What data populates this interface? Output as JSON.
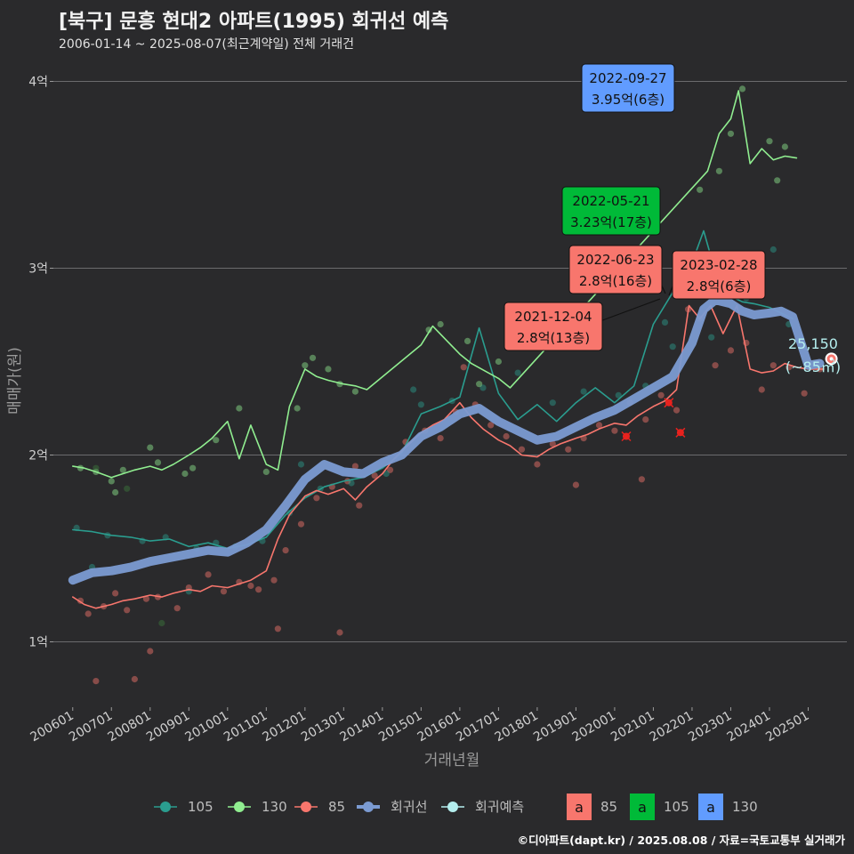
{
  "title": "[북구] 문흥 현대2 아파트(1995) 회귀선 예측",
  "subtitle": "2006-01-14 ~ 2025-08-07(최근계약일) 전체 거래건",
  "caption": "©디아파트(dapt.kr) / 2025.08.08 / 자료=국토교통부 실거래가",
  "colors": {
    "background": "#2a2a2c",
    "s105": "#2a9d8f",
    "s130": "#90ee90",
    "s85": "#f8766d",
    "regression": "#7b9bd2",
    "forecast": "#b4eeee",
    "box85": "#f8766d",
    "box105": "#00ba38",
    "box130": "#619cff"
  },
  "chart_data": {
    "type": "line",
    "xlabel": "거래년월",
    "ylabel": "매매가(원)",
    "x_range": [
      2005.5,
      2026.0
    ],
    "ylim": [
      6500,
      41500
    ],
    "y_ticks": [
      {
        "value": 10000,
        "label": "1억"
      },
      {
        "value": 20000,
        "label": "2억"
      },
      {
        "value": 30000,
        "label": "3억"
      },
      {
        "value": 40000,
        "label": "4억"
      }
    ],
    "x_ticks": [
      {
        "value": 2006,
        "label": "200601"
      },
      {
        "value": 2007,
        "label": "200701"
      },
      {
        "value": 2008,
        "label": "200801"
      },
      {
        "value": 2009,
        "label": "200901"
      },
      {
        "value": 2010,
        "label": "201001"
      },
      {
        "value": 2011,
        "label": "201101"
      },
      {
        "value": 2012,
        "label": "201201"
      },
      {
        "value": 2013,
        "label": "201301"
      },
      {
        "value": 2014,
        "label": "201401"
      },
      {
        "value": 2015,
        "label": "201501"
      },
      {
        "value": 2016,
        "label": "201601"
      },
      {
        "value": 2017,
        "label": "201701"
      },
      {
        "value": 2018,
        "label": "201801"
      },
      {
        "value": 2019,
        "label": "201901"
      },
      {
        "value": 2020,
        "label": "202001"
      },
      {
        "value": 2021,
        "label": "202101"
      },
      {
        "value": 2022,
        "label": "202201"
      },
      {
        "value": 2023,
        "label": "202301"
      },
      {
        "value": 2024,
        "label": "202401"
      },
      {
        "value": 2025,
        "label": "202501"
      }
    ],
    "series": [
      {
        "name": "85",
        "color": "#f8766d",
        "x": [
          2006.0,
          2006.3,
          2006.6,
          2007.0,
          2007.3,
          2007.6,
          2008.0,
          2008.3,
          2008.6,
          2009.0,
          2009.3,
          2009.6,
          2010.0,
          2010.3,
          2010.6,
          2011.0,
          2011.3,
          2011.6,
          2012.0,
          2012.3,
          2012.6,
          2013.0,
          2013.3,
          2013.6,
          2014.0,
          2014.3,
          2014.6,
          2015.0,
          2015.3,
          2015.6,
          2016.0,
          2016.3,
          2016.6,
          2017.0,
          2017.3,
          2017.6,
          2018.0,
          2018.3,
          2018.6,
          2019.0,
          2019.3,
          2019.6,
          2020.0,
          2020.3,
          2020.6,
          2021.0,
          2021.3,
          2021.6,
          2021.92,
          2022.2,
          2022.48,
          2022.8,
          2023.16,
          2023.5,
          2023.8,
          2024.1,
          2024.4,
          2024.7,
          2025.0,
          2025.4
        ],
        "values": [
          12400,
          12000,
          11800,
          12000,
          12200,
          12300,
          12500,
          12400,
          12600,
          12800,
          12700,
          13000,
          12900,
          13100,
          13300,
          13800,
          15500,
          16800,
          17800,
          18100,
          17900,
          18200,
          17600,
          18300,
          19000,
          19800,
          20400,
          21200,
          21600,
          21900,
          22800,
          22000,
          21400,
          20800,
          20500,
          20000,
          19900,
          20300,
          20600,
          20900,
          21100,
          21400,
          21700,
          21600,
          22100,
          22600,
          22900,
          23500,
          28000,
          27300,
          28000,
          26500,
          28000,
          24600,
          24400,
          24500,
          24900,
          24700,
          24600,
          24600
        ]
      },
      {
        "name": "105",
        "color": "#2a9d8f",
        "x": [
          2006.0,
          2006.5,
          2007.0,
          2007.5,
          2008.0,
          2008.5,
          2009.0,
          2009.5,
          2010.0,
          2010.5,
          2011.0,
          2011.5,
          2012.0,
          2012.5,
          2013.0,
          2013.5,
          2014.0,
          2014.5,
          2015.0,
          2015.5,
          2016.0,
          2016.5,
          2017.0,
          2017.5,
          2018.0,
          2018.5,
          2019.0,
          2019.5,
          2020.0,
          2020.5,
          2021.0,
          2021.5,
          2022.0,
          2022.3,
          2022.6,
          2023.0,
          2023.3,
          2023.6,
          2024.0,
          2024.3,
          2024.6
        ],
        "values": [
          16000,
          15900,
          15700,
          15600,
          15400,
          15500,
          15100,
          15300,
          15000,
          15200,
          15600,
          16800,
          17700,
          18300,
          18600,
          18800,
          19300,
          20100,
          22200,
          22600,
          23100,
          26800,
          23300,
          21900,
          22700,
          21800,
          22800,
          23600,
          22800,
          23700,
          27000,
          28700,
          30300,
          32000,
          29800,
          28500,
          28200,
          28100,
          27900,
          27600,
          27300
        ]
      },
      {
        "name": "130",
        "color": "#90ee90",
        "x": [
          2006.0,
          2006.3,
          2006.6,
          2007.0,
          2007.3,
          2007.6,
          2008.0,
          2008.3,
          2008.6,
          2009.0,
          2009.3,
          2009.6,
          2010.0,
          2010.3,
          2010.6,
          2011.0,
          2011.3,
          2011.6,
          2012.0,
          2012.3,
          2012.6,
          2013.0,
          2013.3,
          2013.6,
          2015.0,
          2015.3,
          2016.0,
          2016.3,
          2017.0,
          2017.3,
          2022.4,
          2022.7,
          2023.0,
          2023.2,
          2023.5,
          2023.8,
          2024.1,
          2024.4,
          2024.7
        ],
        "values": [
          19400,
          19300,
          19100,
          18800,
          19000,
          19200,
          19400,
          19200,
          19500,
          20000,
          20400,
          20900,
          21800,
          19800,
          21600,
          19500,
          19200,
          22600,
          24600,
          24200,
          24000,
          23800,
          23700,
          23500,
          25900,
          26900,
          25400,
          24900,
          24100,
          23600,
          35200,
          37200,
          38000,
          39500,
          35600,
          36400,
          35800,
          36000,
          35900
        ]
      },
      {
        "name": "회귀선",
        "color": "#7b9bd2",
        "x": [
          2006.0,
          2006.5,
          2007.0,
          2007.5,
          2008.0,
          2008.5,
          2009.0,
          2009.5,
          2010.0,
          2010.5,
          2011.0,
          2011.5,
          2012.0,
          2012.5,
          2013.0,
          2013.5,
          2014.0,
          2014.5,
          2015.0,
          2015.5,
          2016.0,
          2016.5,
          2017.0,
          2017.5,
          2018.0,
          2018.5,
          2019.0,
          2019.5,
          2020.0,
          2020.5,
          2021.0,
          2021.5,
          2022.0,
          2022.3,
          2022.6,
          2023.0,
          2023.3,
          2023.6,
          2024.0,
          2024.3,
          2024.6,
          2025.0,
          2025.3
        ],
        "values": [
          13300,
          13700,
          13800,
          14000,
          14300,
          14500,
          14700,
          14900,
          14800,
          15300,
          16000,
          17300,
          18700,
          19500,
          19100,
          19000,
          19600,
          20000,
          21000,
          21500,
          22200,
          22500,
          21800,
          21300,
          20800,
          21000,
          21500,
          22000,
          22400,
          23000,
          23600,
          24200,
          26000,
          27800,
          28300,
          28100,
          27700,
          27500,
          27600,
          27700,
          27400,
          24800,
          24900
        ]
      },
      {
        "name": "회귀예측",
        "color": "#b4eeee",
        "x": [
          2025.6
        ],
        "values": [
          25150
        ]
      }
    ],
    "scatter": [
      {
        "name": "85",
        "x": [
          2006.2,
          2006.4,
          2006.8,
          2007.1,
          2007.4,
          2007.9,
          2008.2,
          2008.7,
          2009.0,
          2009.5,
          2009.9,
          2010.3,
          2010.8,
          2011.2,
          2011.5,
          2011.9,
          2012.3,
          2012.7,
          2013.1,
          2013.4,
          2013.8,
          2014.2,
          2014.6,
          2015.1,
          2015.5,
          2015.9,
          2016.4,
          2016.8,
          2017.2,
          2017.6,
          2018.0,
          2018.4,
          2018.8,
          2019.2,
          2019.6,
          2020.0,
          2020.4,
          2020.8,
          2021.2,
          2021.6,
          2021.9,
          2022.2,
          2022.6,
          2023.0,
          2023.4,
          2023.8,
          2024.1,
          2024.5,
          2024.9,
          2025.3,
          2006.6,
          2007.6,
          2008.0,
          2010.6,
          2011.3,
          2012.9,
          2013.3,
          2016.1,
          2019.0,
          2020.7
        ],
        "values": [
          12200,
          11500,
          11900,
          12600,
          11700,
          12300,
          12400,
          11800,
          12900,
          13600,
          12700,
          13200,
          12800,
          13300,
          14900,
          16300,
          17700,
          18300,
          18600,
          17300,
          18900,
          19200,
          20700,
          21300,
          20900,
          22300,
          22700,
          21600,
          21000,
          20300,
          19500,
          20600,
          20300,
          20900,
          21600,
          21300,
          22800,
          21900,
          23200,
          22400,
          27800,
          27300,
          24800,
          25600,
          26000,
          23500,
          24800,
          24700,
          23300,
          24600,
          7900,
          8000,
          9500,
          13000,
          10700,
          10500,
          19400,
          24700,
          18400,
          18700
        ]
      },
      {
        "name": "105",
        "x": [
          2006.1,
          2006.9,
          2007.8,
          2008.4,
          2009.2,
          2009.7,
          2010.2,
          2010.9,
          2011.6,
          2012.4,
          2013.2,
          2014.1,
          2015.0,
          2015.8,
          2016.6,
          2017.5,
          2018.4,
          2019.2,
          2020.1,
          2020.8,
          2021.3,
          2022.1,
          2022.8,
          2023.4,
          2024.1,
          2024.5,
          2006.5,
          2009.0,
          2011.9,
          2014.8,
          2021.5,
          2022.5
        ],
        "values": [
          16100,
          15700,
          15400,
          15600,
          15000,
          15300,
          15100,
          15400,
          16900,
          18200,
          18500,
          19000,
          22700,
          22900,
          23600,
          24400,
          22800,
          23400,
          23200,
          23700,
          27100,
          29800,
          29200,
          28400,
          31000,
          27000,
          14000,
          12700,
          19500,
          23500,
          25800,
          26300
        ]
      },
      {
        "name": "130",
        "x": [
          2006.2,
          2006.6,
          2007.0,
          2007.3,
          2008.0,
          2008.2,
          2008.9,
          2009.1,
          2009.7,
          2010.3,
          2011.0,
          2011.8,
          2012.0,
          2012.2,
          2012.6,
          2012.9,
          2013.3,
          2015.2,
          2015.5,
          2016.2,
          2017.0,
          2022.7,
          2023.0,
          2023.3,
          2024.0,
          2024.4,
          2024.2,
          2022.2,
          2007.1,
          2016.5
        ],
        "values": [
          19300,
          19100,
          18600,
          19200,
          20400,
          19600,
          19000,
          19300,
          20800,
          22500,
          19100,
          22500,
          24800,
          25200,
          24600,
          23800,
          23400,
          26700,
          27000,
          26100,
          25000,
          35200,
          37200,
          39600,
          36800,
          36500,
          34700,
          34200,
          18000,
          23800
        ]
      },
      {
        "name": "130_dark",
        "x": [
          2008.3,
          2006.6,
          2007.4
        ],
        "values": [
          11000,
          19300,
          18200
        ]
      }
    ],
    "highlights": [
      {
        "series": "85",
        "x": 2020.3,
        "value": 21000
      },
      {
        "series": "85",
        "x": 2021.4,
        "value": 22800
      },
      {
        "series": "85",
        "x": 2021.7,
        "value": 21200
      }
    ],
    "callouts": [
      {
        "series": "130",
        "x": 2022.74,
        "value": 39500,
        "date": "2022-09-27",
        "price": "3.95억(6층)"
      },
      {
        "series": "105",
        "x": 2022.39,
        "value": 32300,
        "date": "2022-05-21",
        "price": "3.23억(17층)"
      },
      {
        "series": "85",
        "x": 2022.48,
        "value": 28000,
        "date": "2022-06-23",
        "price": "2.8억(16층)"
      },
      {
        "series": "85",
        "x": 2023.16,
        "value": 28000,
        "date": "2023-02-28",
        "price": "2.8억(6층)"
      },
      {
        "series": "85",
        "x": 2021.92,
        "value": 28000,
        "date": "2021-12-04",
        "price": "2.8억(13층)"
      }
    ],
    "forecast_label": {
      "value": "25,150",
      "area": "(~85㎡)"
    },
    "legend": {
      "position": "bottom",
      "lines": [
        {
          "name": "105",
          "color": "#2a9d8f"
        },
        {
          "name": "130",
          "color": "#90ee90"
        },
        {
          "name": "85",
          "color": "#f8766d"
        },
        {
          "name": "회귀선",
          "color": "#7b9bd2"
        },
        {
          "name": "회귀예측",
          "color": "#b4eeee"
        }
      ],
      "boxes": [
        {
          "letter": "a",
          "name": "85",
          "color": "#f8766d"
        },
        {
          "letter": "a",
          "name": "105",
          "color": "#00ba38"
        },
        {
          "letter": "a",
          "name": "130",
          "color": "#619cff"
        }
      ]
    }
  }
}
